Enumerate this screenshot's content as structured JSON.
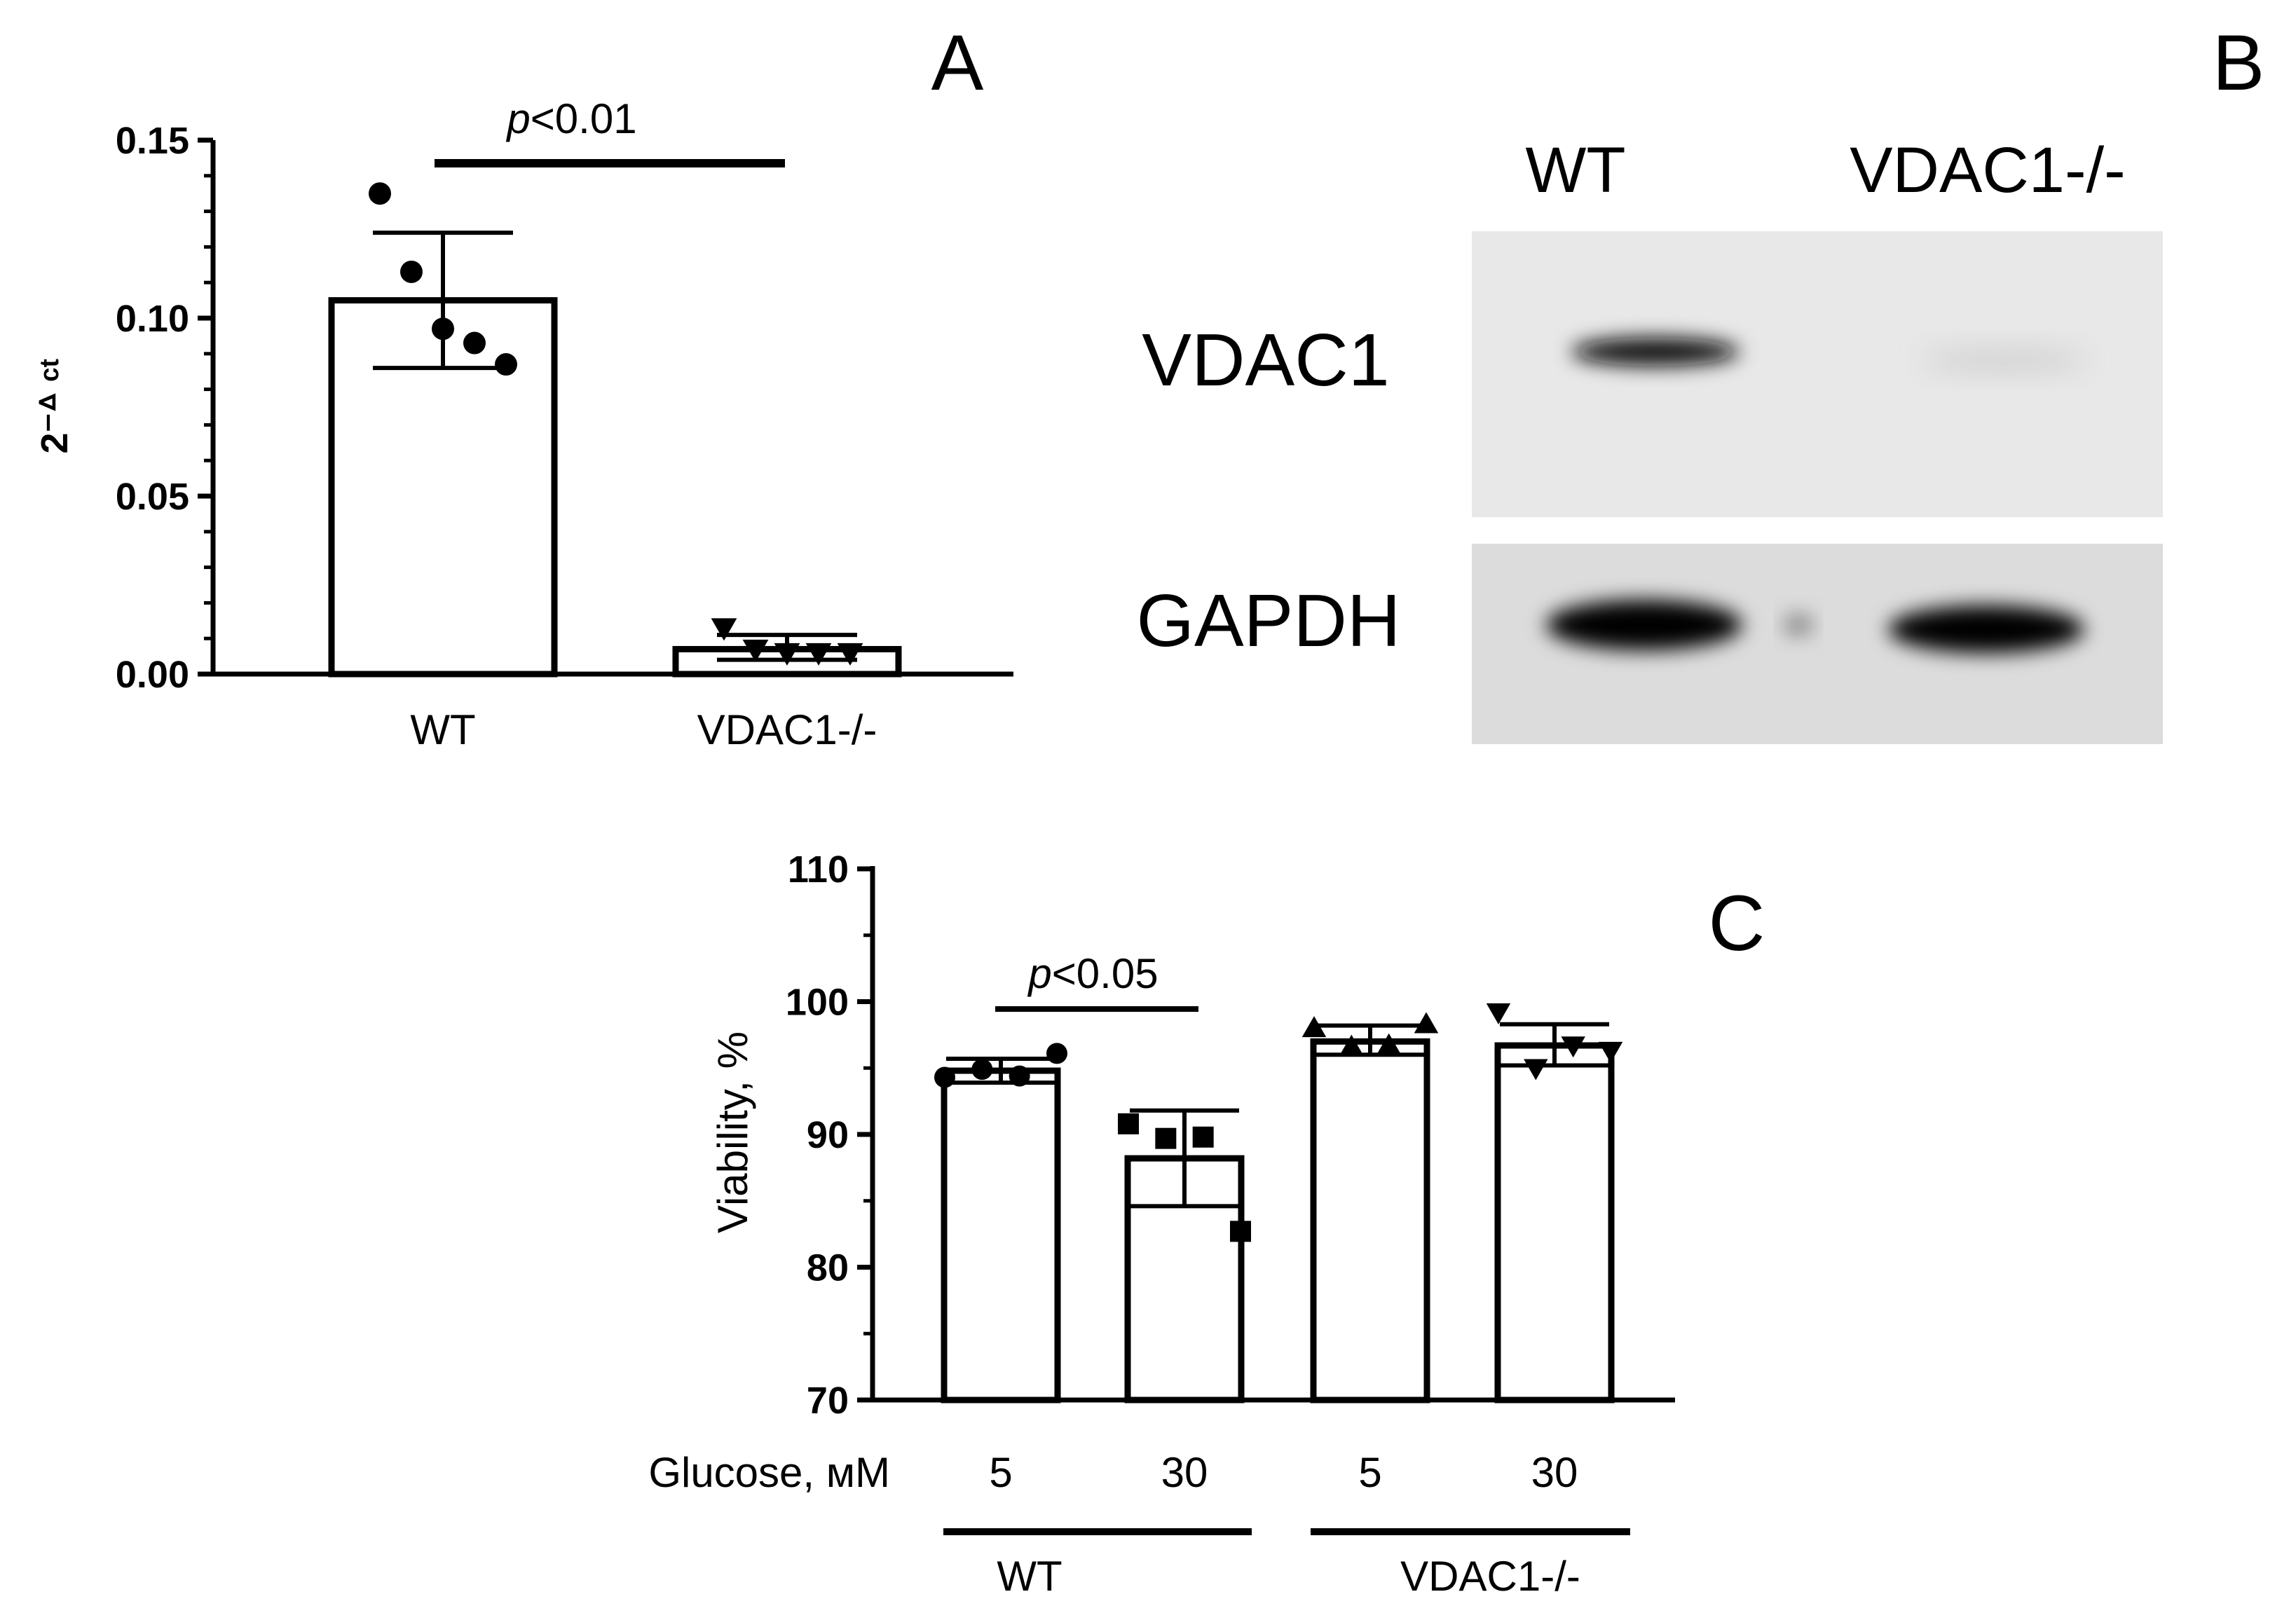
{
  "figure": {
    "panel_letters": [
      "A",
      "B",
      "C"
    ]
  },
  "panel_b": {
    "lane_labels": [
      "WT",
      "VDAC1-/-"
    ],
    "row_labels": [
      "VDAC1",
      "GAPDH"
    ],
    "band_intensity": {
      "VDAC1": [
        0.95,
        0.08
      ],
      "GAPDH": [
        1.0,
        1.0
      ]
    }
  },
  "chart_data": [
    {
      "panel": "A",
      "type": "bar",
      "categories": [
        "WT",
        "VDAC1-/-"
      ],
      "values": [
        0.105,
        0.007
      ],
      "error": [
        {
          "low": 0.086,
          "high": 0.124
        },
        {
          "low": 0.004,
          "high": 0.011
        }
      ],
      "points": [
        {
          "marker": "circle",
          "values": [
            0.135,
            0.113,
            0.097,
            0.093,
            0.087
          ]
        },
        {
          "marker": "triangle-down",
          "values": [
            0.013,
            0.007,
            0.006,
            0.006,
            0.006
          ]
        }
      ],
      "ylabel": "2⁻ᐞ ᶜᵗ",
      "ylim": [
        0,
        0.15
      ],
      "yticks": [
        "0.00",
        "0.05",
        "0.10",
        "0.15"
      ],
      "significance": {
        "label_italic": "p",
        "label_rest": "<0.01",
        "between": [
          "WT",
          "VDAC1-/-"
        ]
      },
      "grid": false
    },
    {
      "panel": "C",
      "type": "bar",
      "xlabel": "Glucose, мМ",
      "categories": [
        "5",
        "30",
        "5",
        "30"
      ],
      "groups": [
        {
          "label": "WT",
          "categories": [
            0,
            1
          ]
        },
        {
          "label": "VDAC1-/-",
          "categories": [
            2,
            3
          ]
        }
      ],
      "values": [
        94.8,
        88.2,
        97.0,
        96.7
      ],
      "error": [
        {
          "low": 93.9,
          "high": 95.7
        },
        {
          "low": 84.6,
          "high": 91.8
        },
        {
          "low": 96.0,
          "high": 98.2
        },
        {
          "low": 95.2,
          "high": 98.3
        }
      ],
      "points": [
        {
          "marker": "circle",
          "values": [
            94.3,
            94.9,
            94.4,
            96.1
          ]
        },
        {
          "marker": "square",
          "values": [
            90.8,
            89.7,
            89.8,
            82.7
          ]
        },
        {
          "marker": "triangle-up",
          "values": [
            98.0,
            96.6,
            96.7,
            98.3
          ]
        },
        {
          "marker": "triangle-down",
          "values": [
            99.2,
            95.0,
            96.7,
            96.3
          ]
        }
      ],
      "ylabel": "Viability, %",
      "ylim": [
        70,
        110
      ],
      "yticks": [
        "70",
        "80",
        "90",
        "100",
        "110"
      ],
      "significance": {
        "label_italic": "p",
        "label_rest": "<0.05",
        "between": [
          "5",
          "30"
        ]
      },
      "grid": false
    }
  ]
}
